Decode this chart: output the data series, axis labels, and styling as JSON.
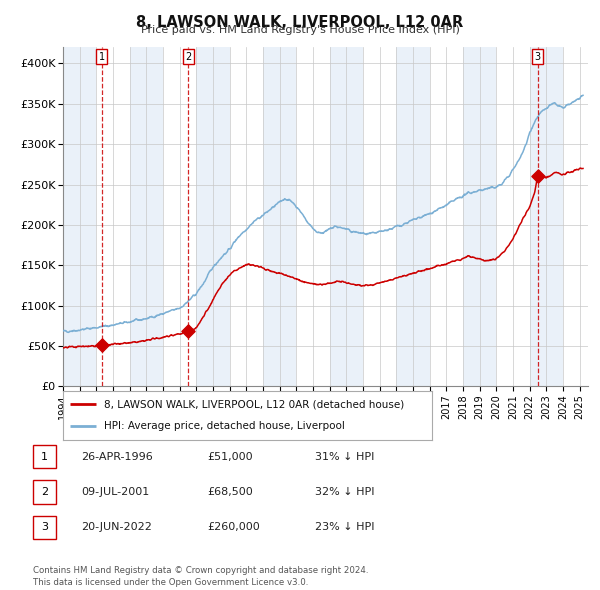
{
  "title": "8, LAWSON WALK, LIVERPOOL, L12 0AR",
  "subtitle": "Price paid vs. HM Land Registry's House Price Index (HPI)",
  "xlim": [
    1994.0,
    2025.5
  ],
  "ylim": [
    0,
    420000
  ],
  "yticks": [
    0,
    50000,
    100000,
    150000,
    200000,
    250000,
    300000,
    350000,
    400000
  ],
  "ytick_labels": [
    "£0",
    "£50K",
    "£100K",
    "£150K",
    "£200K",
    "£250K",
    "£300K",
    "£350K",
    "£400K"
  ],
  "hpi_color": "#7bafd4",
  "price_color": "#cc0000",
  "sale_marker_color": "#cc0000",
  "vline_color": "#cc0000",
  "bg_stripe_color": "#dce9f5",
  "bg_stripe_alpha": 0.6,
  "sale_dates_decimal": [
    1996.32,
    2001.52,
    2022.47
  ],
  "sale_prices": [
    51000,
    68500,
    260000
  ],
  "sale_labels": [
    "1",
    "2",
    "3"
  ],
  "label_box_edgecolor": "#cc0000",
  "legend_entries": [
    "8, LAWSON WALK, LIVERPOOL, L12 0AR (detached house)",
    "HPI: Average price, detached house, Liverpool"
  ],
  "table_rows": [
    [
      "1",
      "26-APR-1996",
      "£51,000",
      "31% ↓ HPI"
    ],
    [
      "2",
      "09-JUL-2001",
      "£68,500",
      "32% ↓ HPI"
    ],
    [
      "3",
      "20-JUN-2022",
      "£260,000",
      "23% ↓ HPI"
    ]
  ],
  "footer": "Contains HM Land Registry data © Crown copyright and database right 2024.\nThis data is licensed under the Open Government Licence v3.0.",
  "stripe_ranges": [
    [
      1994.0,
      1996.0
    ],
    [
      1998.0,
      2000.0
    ],
    [
      2002.0,
      2004.0
    ],
    [
      2006.0,
      2008.0
    ],
    [
      2010.0,
      2012.0
    ],
    [
      2014.0,
      2016.0
    ],
    [
      2018.0,
      2020.0
    ],
    [
      2022.0,
      2024.0
    ]
  ]
}
